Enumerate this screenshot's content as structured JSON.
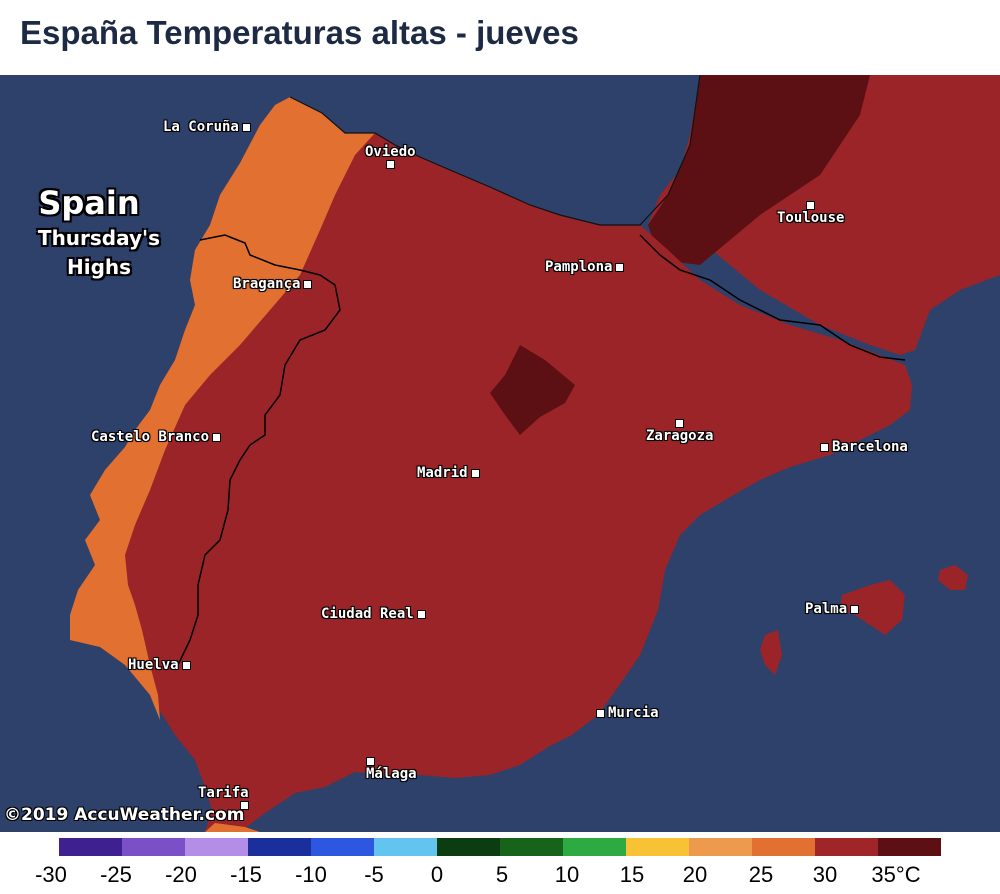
{
  "title": "España Temperaturas altas - jueves",
  "map_labels": {
    "region": "Spain",
    "subtitle_line1": "Thursday's",
    "subtitle_line2": "Highs"
  },
  "copyright": "©2019 AccuWeather.com",
  "cities": [
    {
      "name": "La Coruña"
    },
    {
      "name": "Oviedo"
    },
    {
      "name": "Toulouse"
    },
    {
      "name": "Pamplona"
    },
    {
      "name": "Bragança"
    },
    {
      "name": "Castelo Branco"
    },
    {
      "name": "Zaragoza"
    },
    {
      "name": "Barcelona"
    },
    {
      "name": "Madrid"
    },
    {
      "name": "Palma"
    },
    {
      "name": "Ciudad Real"
    },
    {
      "name": "Huelva"
    },
    {
      "name": "Murcia"
    },
    {
      "name": "Málaga"
    },
    {
      "name": "Tarifa"
    }
  ],
  "legend": {
    "labels": [
      "-30",
      "-25",
      "-20",
      "-15",
      "-10",
      "-5",
      "0",
      "5",
      "10",
      "15",
      "20",
      "25",
      "30",
      "35°C"
    ],
    "colors": [
      "#ffffff",
      "#3e2090",
      "#7a4fc8",
      "#b48ee6",
      "#1a2e9c",
      "#2d57e0",
      "#62c4ef",
      "#0c3d12",
      "#17631a",
      "#2eaa42",
      "#f7c233",
      "#ee9a4c",
      "#e27030",
      "#a02528",
      "#5c1013"
    ]
  },
  "colors": {
    "sea": "#2e416b",
    "temp_20_25": "#ee9a4c",
    "temp_25_30": "#e27030",
    "temp_30_35": "#9b2428",
    "temp_35_plus": "#5c1013"
  }
}
